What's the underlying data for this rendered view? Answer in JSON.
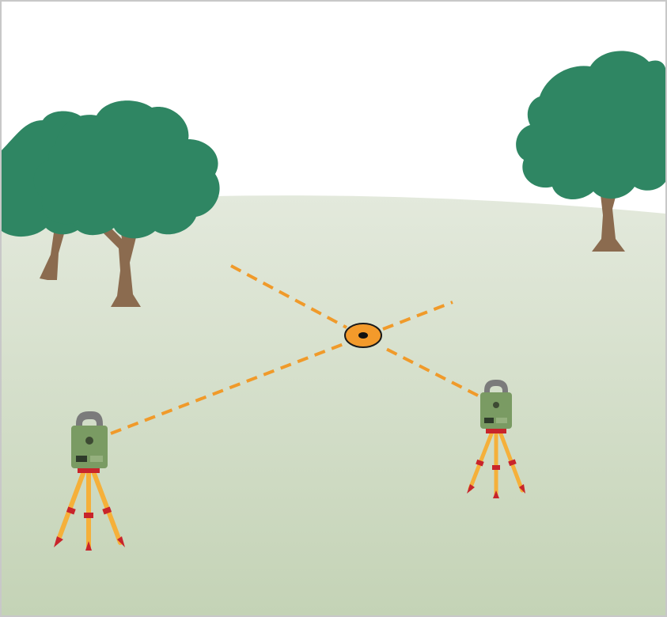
{
  "scene": {
    "kind": "survey-triangulation-illustration",
    "instruments": [
      "total-station-left",
      "total-station-right"
    ],
    "target": "survey-target-point",
    "trees": [
      "tree-back-left",
      "tree-front-left",
      "tree-right"
    ]
  },
  "colors": {
    "sky": "#ffffff",
    "ground_top": "#e3e9dc",
    "ground_bottom": "#c4d3b6",
    "foliage": "#2f8663",
    "trunk": "#8b6b4f",
    "sight_line": "#f09a2a",
    "target_fill": "#f39a2b",
    "target_center": "#111111",
    "instrument_body": "#7a9b63",
    "instrument_handle": "#7b7b7b",
    "tripod_leg": "#f5b03a",
    "tripod_band": "#c8242b",
    "frame_border": "#c8c8c8"
  }
}
